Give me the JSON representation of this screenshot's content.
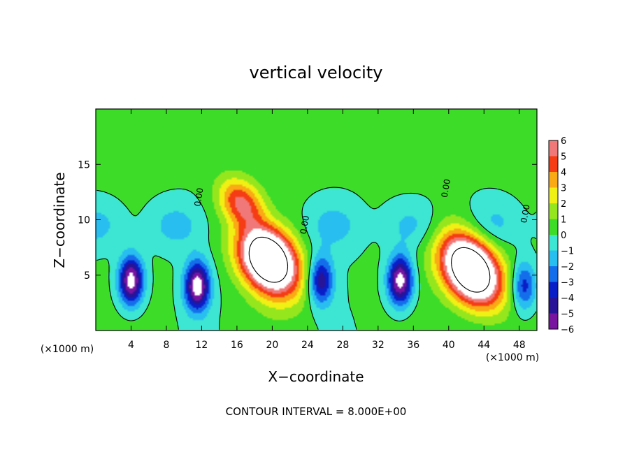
{
  "chart_data": {
    "type": "heatmap",
    "title": "vertical velocity",
    "xlabel": "X−coordinate",
    "ylabel": "Z−coordinate",
    "x_unit_left": "(×1000 m)",
    "x_unit_right": "(×1000 m)",
    "xlim": [
      0,
      50
    ],
    "ylim": [
      0,
      20
    ],
    "x_ticks": [
      4,
      8,
      12,
      16,
      20,
      24,
      28,
      32,
      36,
      40,
      44,
      48
    ],
    "x_tick_labels": [
      "4",
      "8",
      "12",
      "16",
      "20",
      "24",
      "28",
      "32",
      "36",
      "40",
      "44",
      "48"
    ],
    "y_ticks": [
      5,
      10,
      15
    ],
    "y_tick_labels": [
      "5",
      "10",
      "15"
    ],
    "colorbar_ticks": [
      6,
      5,
      4,
      3,
      2,
      1,
      0,
      -1,
      -2,
      -3,
      -4,
      -5,
      -6
    ],
    "colorbar_tick_labels": [
      "6",
      "5",
      "4",
      "3",
      "2",
      "1",
      "0",
      "−1",
      "−2",
      "−3",
      "−4",
      "−5",
      "−6"
    ],
    "clim": [
      -6,
      6
    ],
    "contour_label": "0.00",
    "contour_interval_text": "CONTOUR INTERVAL = 8.000E+00",
    "features": [
      {
        "kind": "updraft",
        "x": 19.5,
        "z": 6.5,
        "peak": 12
      },
      {
        "kind": "updraft",
        "x": 42.5,
        "z": 5.5,
        "peak": 12
      },
      {
        "kind": "updraft",
        "x": 16.5,
        "z": 11.5,
        "peak": 5
      },
      {
        "kind": "downdraft",
        "x": 11.5,
        "z": 4.0,
        "peak": -7
      },
      {
        "kind": "downdraft",
        "x": 4.0,
        "z": 4.5,
        "peak": -7
      },
      {
        "kind": "downdraft",
        "x": 25.5,
        "z": 4.5,
        "peak": -5
      },
      {
        "kind": "downdraft",
        "x": 34.5,
        "z": 4.5,
        "peak": -7
      },
      {
        "kind": "downdraft",
        "x": 48.5,
        "z": 4.0,
        "peak": -4
      }
    ]
  }
}
